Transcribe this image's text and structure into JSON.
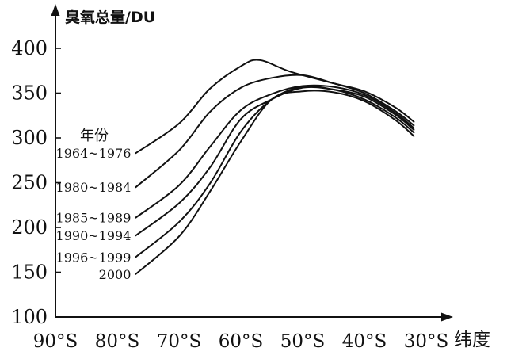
{
  "chart_data": {
    "type": "line",
    "ylabel": "臭氧总量/DU",
    "xlabel": "纬度",
    "legend_title": "年份",
    "x_ticks": [
      "90°S",
      "80°S",
      "70°S",
      "60°S",
      "50°S",
      "40°S",
      "30°S"
    ],
    "x_tick_values": [
      -90,
      -80,
      -70,
      -60,
      -50,
      -40,
      -30
    ],
    "y_ticks": [
      "400",
      "350",
      "300",
      "250",
      "200",
      "150",
      "100"
    ],
    "y_tick_values": [
      400,
      350,
      300,
      250,
      200,
      150,
      100
    ],
    "xlim": [
      -90,
      -30
    ],
    "ylim": [
      100,
      400
    ],
    "series": [
      {
        "name": "1964~1976",
        "x": [
          -77,
          -70,
          -65,
          -60,
          -57,
          -52,
          -45,
          -40,
          -35,
          -32
        ],
        "y": [
          283,
          316,
          355,
          380,
          387,
          374,
          361,
          352,
          334,
          318
        ]
      },
      {
        "name": "1980~1984",
        "x": [
          -77,
          -70,
          -65,
          -60,
          -55,
          -50,
          -45,
          -40,
          -35,
          -32
        ],
        "y": [
          245,
          286,
          329,
          356,
          367,
          370,
          361,
          350,
          330,
          314
        ]
      },
      {
        "name": "1985~1989",
        "x": [
          -77,
          -70,
          -65,
          -60,
          -55,
          -50,
          -45,
          -40,
          -35,
          -32
        ],
        "y": [
          211,
          247,
          290,
          331,
          349,
          358,
          357,
          348,
          328,
          311
        ]
      },
      {
        "name": "1990~1994",
        "x": [
          -77,
          -70,
          -65,
          -60,
          -55,
          -50,
          -45,
          -40,
          -35,
          -32
        ],
        "y": [
          191,
          227,
          267,
          321,
          343,
          356,
          354,
          346,
          326,
          309
        ]
      },
      {
        "name": "1996~1999",
        "x": [
          -77,
          -70,
          -65,
          -60,
          -55,
          -50,
          -45,
          -40,
          -35,
          -32
        ],
        "y": [
          167,
          206,
          249,
          307,
          343,
          357,
          354,
          343,
          323,
          306
        ]
      },
      {
        "name": "2000",
        "x": [
          -77,
          -70,
          -65,
          -60,
          -55,
          -50,
          -45,
          -40,
          -35,
          -32
        ],
        "y": [
          148,
          190,
          240,
          296,
          343,
          352,
          351,
          341,
          320,
          302
        ]
      }
    ]
  }
}
